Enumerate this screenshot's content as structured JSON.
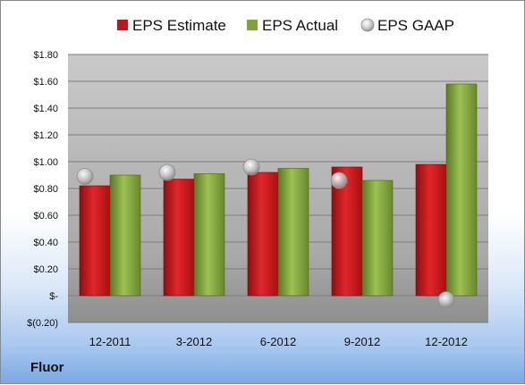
{
  "chart_data": {
    "type": "bar",
    "categories": [
      "12-2011",
      "3-2012",
      "6-2012",
      "9-2012",
      "12-2012"
    ],
    "series": [
      {
        "name": "EPS Estimate",
        "kind": "bar",
        "color": "#c0161b",
        "values": [
          0.82,
          0.87,
          0.92,
          0.96,
          0.98
        ]
      },
      {
        "name": "EPS Actual",
        "kind": "bar",
        "color": "#7fa33b",
        "values": [
          0.9,
          0.91,
          0.95,
          0.86,
          1.58
        ]
      },
      {
        "name": "EPS GAAP",
        "kind": "point",
        "color": "#b8b8b8",
        "values": [
          0.89,
          0.92,
          0.96,
          0.86,
          -0.03
        ]
      }
    ],
    "yticks": [
      "$1.80",
      "$1.60",
      "$1.40",
      "$1.20",
      "$1.00",
      "$0.80",
      "$0.60",
      "$0.40",
      "$0.20",
      "$-",
      "$(0.20)"
    ],
    "ytick_values": [
      1.8,
      1.6,
      1.4,
      1.2,
      1.0,
      0.8,
      0.6,
      0.4,
      0.2,
      0,
      -0.2
    ],
    "ylim": [
      -0.2,
      1.8
    ],
    "grid": true,
    "legend_position": "top"
  },
  "footer": {
    "company": "Fluor"
  }
}
